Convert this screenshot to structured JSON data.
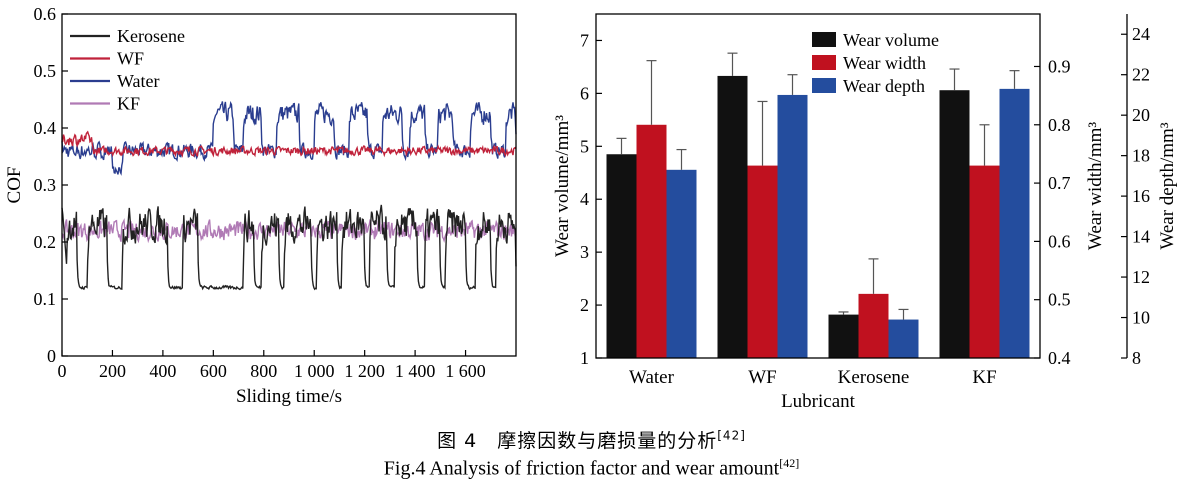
{
  "chart_data": [
    {
      "type": "line",
      "xlabel": "Sliding time/s",
      "ylabel": "COF",
      "xlim": [
        0,
        1800
      ],
      "ylim": [
        0,
        0.6
      ],
      "xticks": [
        0,
        200,
        400,
        600,
        800,
        1000,
        1200,
        1400,
        1600
      ],
      "xtick_labels": [
        "0",
        "200",
        "400",
        "600",
        "800",
        "1 000",
        "1 200",
        "1 400",
        "1 600"
      ],
      "yticks": [
        0,
        0.1,
        0.2,
        0.3,
        0.4,
        0.5,
        0.6
      ],
      "ytick_labels": [
        "0",
        "0.1",
        "0.2",
        "0.3",
        "0.4",
        "0.5",
        "0.6"
      ],
      "grid": false,
      "legend_position": "top-left",
      "series": [
        {
          "name": "Kerosene",
          "color": "#222222",
          "baseline": 0.12,
          "peak": 0.24,
          "peak_windows": [
            [
              0,
              60
            ],
            [
              100,
              180
            ],
            [
              240,
              420
            ],
            [
              480,
              540
            ],
            [
              720,
              760
            ],
            [
              790,
              860
            ],
            [
              880,
              990
            ],
            [
              1010,
              1090
            ],
            [
              1110,
              1200
            ],
            [
              1220,
              1290
            ],
            [
              1320,
              1410
            ],
            [
              1440,
              1500
            ],
            [
              1520,
              1600
            ],
            [
              1640,
              1700
            ],
            [
              1720,
              1800
            ]
          ]
        },
        {
          "name": "WF",
          "color": "#c0223a",
          "mean": 0.36
        },
        {
          "name": "Water",
          "color": "#2a3d8f",
          "baseline": 0.36,
          "peak": 0.44,
          "peak_windows": [
            [
              600,
              680
            ],
            [
              720,
              790
            ],
            [
              850,
              940
            ],
            [
              1000,
              1080
            ],
            [
              1140,
              1210
            ],
            [
              1270,
              1350
            ],
            [
              1380,
              1440
            ],
            [
              1490,
              1550
            ],
            [
              1620,
              1700
            ],
            [
              1760,
              1800
            ]
          ]
        },
        {
          "name": "KF",
          "color": "#b07ab5",
          "mean": 0.22
        }
      ]
    },
    {
      "type": "bar",
      "xlabel": "Lubricant",
      "categories": [
        "Water",
        "WF",
        "Kerosene",
        "KF"
      ],
      "axes": {
        "left": {
          "label": "Wear volume/mm³",
          "lim": [
            1,
            7.5
          ],
          "ticks": [
            1,
            2,
            3,
            4,
            5,
            6,
            7
          ],
          "tick_labels": [
            "1",
            "2",
            "3",
            "4",
            "5",
            "6",
            "7"
          ]
        },
        "right1": {
          "label": "Wear width/mm³",
          "lim": [
            0.4,
            0.99
          ],
          "ticks": [
            0.4,
            0.5,
            0.6,
            0.7,
            0.8,
            0.9
          ],
          "tick_labels": [
            "0.4",
            "0.5",
            "0.6",
            "0.7",
            "0.8",
            "0.9"
          ]
        },
        "right2": {
          "label": "Wear depth/mm³",
          "lim": [
            8,
            25
          ],
          "ticks": [
            8,
            10,
            12,
            14,
            16,
            18,
            20,
            22,
            24
          ],
          "tick_labels": [
            "8",
            "10",
            "12",
            "14",
            "16",
            "18",
            "20",
            "22",
            "24"
          ]
        }
      },
      "legend_position": "top-center",
      "series": [
        {
          "name": "Wear volume",
          "color": "#111111",
          "axis": "left",
          "values": [
            4.85,
            6.33,
            1.82,
            6.06
          ],
          "errors": [
            0.3,
            0.43,
            0.05,
            0.4
          ]
        },
        {
          "name": "Wear width",
          "color": "#c0111f",
          "axis": "right1",
          "values": [
            0.8,
            0.73,
            0.51,
            0.73
          ],
          "errors": [
            0.11,
            0.11,
            0.06,
            0.07
          ]
        },
        {
          "name": "Wear depth",
          "color": "#244d9e",
          "axis": "right2",
          "values": [
            17.3,
            21.0,
            9.9,
            21.3
          ],
          "errors": [
            1.0,
            1.0,
            0.5,
            0.9
          ]
        }
      ]
    }
  ],
  "caption": {
    "zh_text": "图 4　摩擦因数与磨损量的分析",
    "zh_ref": "[42]",
    "en_text": "Fig.4 Analysis of friction factor and wear amount",
    "en_ref": "[42]"
  }
}
